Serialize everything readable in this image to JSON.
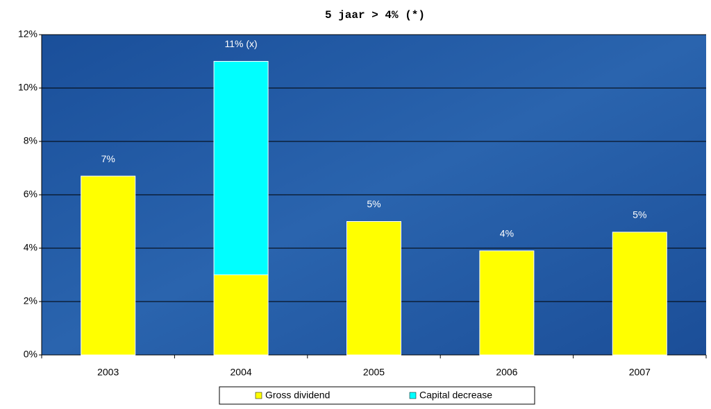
{
  "chart_data": {
    "type": "stacked_bar",
    "title": "5 jaar > 4% (*)",
    "categories": [
      "2003",
      "2004",
      "2005",
      "2006",
      "2007"
    ],
    "series": [
      {
        "name": "Gross dividend",
        "color": "#ffff00",
        "values": [
          6.7,
          3.0,
          5.0,
          3.9,
          4.6
        ]
      },
      {
        "name": "Capital decrease",
        "color": "#00ffff",
        "values": [
          0,
          8.0,
          0,
          0,
          0
        ]
      }
    ],
    "total_labels": [
      "7%",
      "11% (x)",
      "5%",
      "4%",
      "5%"
    ],
    "ylim": [
      0,
      12
    ],
    "yticks": [
      {
        "value": 0,
        "label": "0%"
      },
      {
        "value": 2,
        "label": "2%"
      },
      {
        "value": 4,
        "label": "4%"
      },
      {
        "value": 6,
        "label": "6%"
      },
      {
        "value": 8,
        "label": "8%"
      },
      {
        "value": 10,
        "label": "10%"
      },
      {
        "value": 12,
        "label": "12%"
      }
    ],
    "grid": true,
    "legend": "bottom"
  }
}
